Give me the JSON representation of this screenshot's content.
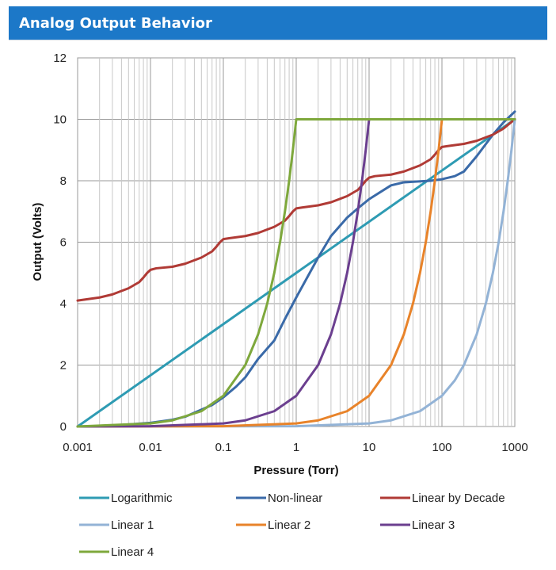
{
  "header": {
    "title": "Analog Output Behavior"
  },
  "colors": {
    "header_bg": "#1c78c8",
    "logarithmic": "#2e9bb3",
    "non_linear": "#3a6aa8",
    "linear_by_decade": "#b03a35",
    "linear_1": "#93b3d6",
    "linear_2": "#e8832a",
    "linear_3": "#6b3f8f",
    "linear_4": "#7ea83c"
  },
  "chart_data": {
    "type": "line",
    "title": "",
    "xlabel": "Pressure (Torr)",
    "ylabel": "Output (Volts)",
    "x_scale": "log",
    "xlim": [
      0.001,
      1000
    ],
    "ylim": [
      0,
      12
    ],
    "x_ticks": [
      "0.001",
      "0.01",
      "0.1",
      "1",
      "10",
      "100",
      "1000"
    ],
    "y_ticks": [
      "0",
      "2",
      "4",
      "6",
      "8",
      "10",
      "12"
    ],
    "grid": true,
    "legend_position": "bottom",
    "series": [
      {
        "name": "Logarithmic",
        "color_key": "logarithmic",
        "points": [
          [
            0.001,
            0
          ],
          [
            1000,
            10
          ]
        ]
      },
      {
        "name": "Non-linear",
        "color_key": "non_linear",
        "points": [
          [
            0.001,
            0
          ],
          [
            0.003,
            0.03
          ],
          [
            0.01,
            0.12
          ],
          [
            0.02,
            0.22
          ],
          [
            0.03,
            0.32
          ],
          [
            0.05,
            0.55
          ],
          [
            0.07,
            0.7
          ],
          [
            0.1,
            0.95
          ],
          [
            0.15,
            1.3
          ],
          [
            0.2,
            1.6
          ],
          [
            0.3,
            2.2
          ],
          [
            0.5,
            2.8
          ],
          [
            0.7,
            3.5
          ],
          [
            1,
            4.2
          ],
          [
            2,
            5.5
          ],
          [
            3,
            6.2
          ],
          [
            5,
            6.8
          ],
          [
            7,
            7.1
          ],
          [
            10,
            7.4
          ],
          [
            20,
            7.85
          ],
          [
            30,
            7.95
          ],
          [
            50,
            7.98
          ],
          [
            70,
            8.0
          ],
          [
            100,
            8.05
          ],
          [
            150,
            8.15
          ],
          [
            200,
            8.3
          ],
          [
            300,
            8.8
          ],
          [
            500,
            9.5
          ],
          [
            700,
            9.9
          ],
          [
            1000,
            10.25
          ]
        ]
      },
      {
        "name": "Linear by Decade",
        "color_key": "linear_by_decade",
        "points": [
          [
            0.001,
            4.1
          ],
          [
            0.002,
            4.2
          ],
          [
            0.003,
            4.3
          ],
          [
            0.005,
            4.5
          ],
          [
            0.007,
            4.7
          ],
          [
            0.008,
            4.85
          ],
          [
            0.009,
            5.0
          ],
          [
            0.01,
            5.1
          ],
          [
            0.012,
            5.15
          ],
          [
            0.02,
            5.2
          ],
          [
            0.03,
            5.3
          ],
          [
            0.05,
            5.5
          ],
          [
            0.07,
            5.7
          ],
          [
            0.08,
            5.85
          ],
          [
            0.09,
            6.0
          ],
          [
            0.1,
            6.1
          ],
          [
            0.12,
            6.13
          ],
          [
            0.2,
            6.2
          ],
          [
            0.3,
            6.3
          ],
          [
            0.5,
            6.5
          ],
          [
            0.7,
            6.7
          ],
          [
            0.8,
            6.85
          ],
          [
            0.9,
            7.0
          ],
          [
            1,
            7.1
          ],
          [
            1.2,
            7.13
          ],
          [
            2,
            7.2
          ],
          [
            3,
            7.3
          ],
          [
            5,
            7.5
          ],
          [
            7,
            7.7
          ],
          [
            8,
            7.85
          ],
          [
            9,
            8.0
          ],
          [
            10,
            8.1
          ],
          [
            12,
            8.15
          ],
          [
            20,
            8.2
          ],
          [
            30,
            8.3
          ],
          [
            50,
            8.5
          ],
          [
            70,
            8.7
          ],
          [
            80,
            8.85
          ],
          [
            90,
            9.0
          ],
          [
            100,
            9.1
          ],
          [
            120,
            9.13
          ],
          [
            200,
            9.2
          ],
          [
            300,
            9.3
          ],
          [
            500,
            9.5
          ],
          [
            700,
            9.7
          ],
          [
            1000,
            10.0
          ]
        ]
      },
      {
        "name": "Linear 1",
        "color_key": "linear_1",
        "points": [
          [
            0.001,
            0
          ],
          [
            1,
            0.01
          ],
          [
            10,
            0.1
          ],
          [
            20,
            0.2
          ],
          [
            50,
            0.5
          ],
          [
            100,
            1
          ],
          [
            150,
            1.5
          ],
          [
            200,
            2
          ],
          [
            300,
            3
          ],
          [
            400,
            4
          ],
          [
            500,
            5
          ],
          [
            600,
            6
          ],
          [
            700,
            7
          ],
          [
            800,
            8
          ],
          [
            900,
            9
          ],
          [
            1000,
            10
          ]
        ]
      },
      {
        "name": "Linear 2",
        "color_key": "linear_2",
        "points": [
          [
            0.001,
            0
          ],
          [
            0.1,
            0.01
          ],
          [
            1,
            0.1
          ],
          [
            2,
            0.2
          ],
          [
            5,
            0.5
          ],
          [
            10,
            1
          ],
          [
            20,
            2
          ],
          [
            30,
            3
          ],
          [
            40,
            4
          ],
          [
            50,
            5
          ],
          [
            60,
            6
          ],
          [
            70,
            7
          ],
          [
            80,
            8
          ],
          [
            90,
            9
          ],
          [
            100,
            10
          ],
          [
            1000,
            10
          ]
        ]
      },
      {
        "name": "Linear 3",
        "color_key": "linear_3",
        "points": [
          [
            0.001,
            0
          ],
          [
            0.01,
            0.01
          ],
          [
            0.1,
            0.1
          ],
          [
            0.2,
            0.2
          ],
          [
            0.5,
            0.5
          ],
          [
            1,
            1
          ],
          [
            2,
            2
          ],
          [
            3,
            3
          ],
          [
            4,
            4
          ],
          [
            5,
            5
          ],
          [
            6,
            6
          ],
          [
            7,
            7
          ],
          [
            8,
            8
          ],
          [
            9,
            9
          ],
          [
            10,
            10
          ],
          [
            1000,
            10
          ]
        ]
      },
      {
        "name": "Linear 4",
        "color_key": "linear_4",
        "points": [
          [
            0.001,
            0
          ],
          [
            0.01,
            0.1
          ],
          [
            0.02,
            0.2
          ],
          [
            0.05,
            0.5
          ],
          [
            0.1,
            1
          ],
          [
            0.2,
            2
          ],
          [
            0.3,
            3
          ],
          [
            0.4,
            4
          ],
          [
            0.5,
            5
          ],
          [
            0.6,
            6
          ],
          [
            0.7,
            7
          ],
          [
            0.8,
            8
          ],
          [
            0.9,
            9
          ],
          [
            1,
            10
          ],
          [
            1000,
            10
          ]
        ]
      }
    ]
  }
}
